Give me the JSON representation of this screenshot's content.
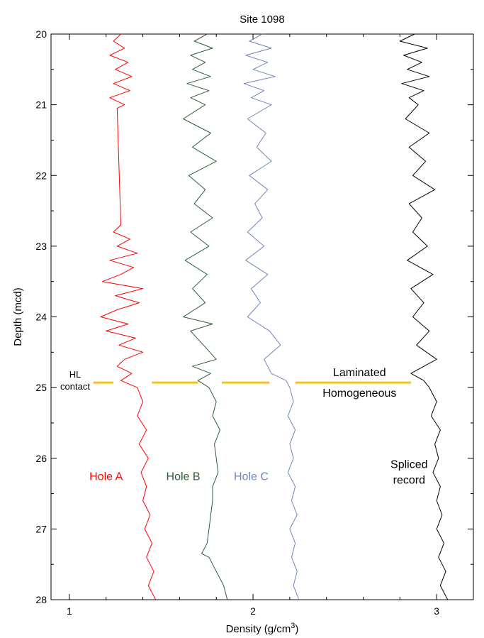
{
  "chart_data": {
    "type": "line",
    "title": "Site 1098",
    "xlabel": "Density (g/cm",
    "xlabel_sup": "3",
    "xlabel_close": ")",
    "ylabel": "Depth (mcd)",
    "xlim": [
      0.9,
      3.2
    ],
    "ylim": [
      20,
      28
    ],
    "y_inverted": true,
    "x_ticks": [
      1,
      2,
      3
    ],
    "y_ticks": [
      20,
      21,
      22,
      23,
      24,
      25,
      26,
      27,
      28
    ],
    "grid": false,
    "series": [
      {
        "name": "Hole A",
        "color": "#ff0000",
        "depth": [
          20.0,
          20.1,
          20.2,
          20.3,
          20.4,
          20.5,
          20.6,
          20.7,
          20.8,
          20.9,
          21.0,
          21.05,
          22.7,
          22.8,
          22.9,
          23.0,
          23.1,
          23.2,
          23.3,
          23.4,
          23.5,
          23.6,
          23.7,
          23.8,
          23.9,
          24.0,
          24.1,
          24.2,
          24.3,
          24.4,
          24.5,
          24.6,
          24.7,
          24.8,
          24.9,
          25.0,
          25.2,
          25.4,
          25.6,
          25.8,
          26.0,
          26.2,
          26.4,
          26.6,
          26.8,
          27.0,
          27.2,
          27.4,
          27.6,
          27.8,
          28.0
        ],
        "density": [
          1.28,
          1.24,
          1.3,
          1.22,
          1.32,
          1.25,
          1.34,
          1.24,
          1.33,
          1.22,
          1.3,
          1.26,
          1.28,
          1.24,
          1.33,
          1.26,
          1.37,
          1.22,
          1.35,
          1.28,
          1.18,
          1.4,
          1.25,
          1.38,
          1.26,
          1.17,
          1.32,
          1.2,
          1.36,
          1.27,
          1.4,
          1.3,
          1.26,
          1.34,
          1.28,
          1.37,
          1.4,
          1.37,
          1.42,
          1.38,
          1.43,
          1.39,
          1.42,
          1.4,
          1.44,
          1.41,
          1.45,
          1.42,
          1.46,
          1.43,
          1.47
        ]
      },
      {
        "name": "Hole B",
        "color": "#2d5e37",
        "depth": [
          20.0,
          20.1,
          20.2,
          20.3,
          20.4,
          20.5,
          20.6,
          20.7,
          20.8,
          20.9,
          21.0,
          21.2,
          21.4,
          21.6,
          21.8,
          22.0,
          22.2,
          22.4,
          22.6,
          22.8,
          23.0,
          23.2,
          23.4,
          23.6,
          23.8,
          24.0,
          24.1,
          24.2,
          24.4,
          24.6,
          24.7,
          24.8,
          24.9,
          25.0,
          25.2,
          25.4,
          25.6,
          25.8,
          26.0,
          26.2,
          26.4,
          26.6,
          26.8,
          27.0,
          27.2,
          27.35,
          27.4,
          27.6,
          27.8,
          28.0
        ],
        "density": [
          1.75,
          1.68,
          1.78,
          1.66,
          1.74,
          1.67,
          1.77,
          1.64,
          1.76,
          1.66,
          1.74,
          1.62,
          1.77,
          1.67,
          1.8,
          1.65,
          1.74,
          1.68,
          1.78,
          1.66,
          1.76,
          1.63,
          1.75,
          1.67,
          1.74,
          1.62,
          1.78,
          1.66,
          1.73,
          1.8,
          1.67,
          1.77,
          1.7,
          1.76,
          1.8,
          1.78,
          1.82,
          1.79,
          1.8,
          1.81,
          1.78,
          1.78,
          1.77,
          1.76,
          1.75,
          1.72,
          1.76,
          1.8,
          1.84,
          1.86
        ]
      },
      {
        "name": "Hole C",
        "color": "#6f86b8",
        "depth": [
          20.0,
          20.1,
          20.2,
          20.3,
          20.4,
          20.5,
          20.6,
          20.7,
          20.8,
          20.9,
          21.0,
          21.2,
          21.4,
          21.6,
          21.8,
          22.0,
          22.2,
          22.4,
          22.6,
          22.8,
          23.0,
          23.2,
          23.4,
          23.6,
          23.8,
          24.0,
          24.2,
          24.4,
          24.6,
          24.8,
          24.9,
          25.0,
          25.2,
          25.4,
          25.6,
          25.8,
          26.0,
          26.2,
          26.4,
          26.6,
          26.8,
          27.0,
          27.2,
          27.4,
          27.6,
          27.8,
          28.0
        ],
        "density": [
          2.05,
          1.98,
          2.1,
          1.96,
          2.08,
          2.0,
          2.12,
          1.95,
          2.06,
          1.99,
          2.1,
          1.97,
          2.07,
          2.02,
          2.1,
          1.98,
          2.08,
          2.01,
          2.05,
          1.97,
          2.06,
          1.96,
          2.08,
          1.99,
          2.04,
          1.97,
          2.09,
          2.15,
          2.06,
          2.1,
          2.18,
          2.2,
          2.22,
          2.19,
          2.23,
          2.2,
          2.22,
          2.19,
          2.23,
          2.21,
          2.24,
          2.2,
          2.23,
          2.21,
          2.24,
          2.22,
          2.25
        ]
      },
      {
        "name": "Spliced record",
        "color": "#000000",
        "depth": [
          20.0,
          20.1,
          20.2,
          20.3,
          20.4,
          20.5,
          20.6,
          20.7,
          20.8,
          20.9,
          21.0,
          21.2,
          21.4,
          21.6,
          21.8,
          22.0,
          22.2,
          22.4,
          22.6,
          22.8,
          23.0,
          23.2,
          23.4,
          23.6,
          23.8,
          24.0,
          24.2,
          24.4,
          24.6,
          24.8,
          24.9,
          25.0,
          25.2,
          25.4,
          25.6,
          25.8,
          26.0,
          26.2,
          26.4,
          26.6,
          26.8,
          27.0,
          27.2,
          27.4,
          27.6,
          27.8,
          28.0
        ],
        "density": [
          2.88,
          2.8,
          2.95,
          2.82,
          2.92,
          2.84,
          2.96,
          2.81,
          2.93,
          2.85,
          2.9,
          2.83,
          2.96,
          2.85,
          2.94,
          2.87,
          2.99,
          2.85,
          2.92,
          2.87,
          2.95,
          2.84,
          2.98,
          2.86,
          2.93,
          2.87,
          2.96,
          2.89,
          3.0,
          2.86,
          2.93,
          2.96,
          3.0,
          2.97,
          3.02,
          2.99,
          3.01,
          2.98,
          3.02,
          3.0,
          3.03,
          3.0,
          3.04,
          3.01,
          3.05,
          3.02,
          3.06
        ]
      }
    ],
    "contact": {
      "depth": 24.93,
      "color": "#f5c02a",
      "label_line1": "HL",
      "label_line2": "contact",
      "above_label": "Laminated",
      "below_label": "Homogeneous",
      "dash_segments": [
        [
          1.13,
          1.24
        ],
        [
          1.45,
          1.7
        ],
        [
          1.83,
          2.09
        ],
        [
          2.23,
          2.86
        ]
      ]
    },
    "annotations": [
      {
        "text": "Hole A",
        "color": "#ff0000",
        "x": 1.2,
        "y": 26.25
      },
      {
        "text": "Hole B",
        "color": "#2d5e37",
        "x": 1.62,
        "y": 26.25
      },
      {
        "text": "Hole C",
        "color": "#6f86b8",
        "x": 1.99,
        "y": 26.25
      },
      {
        "text": "Spliced",
        "color": "#000000",
        "x": 2.85,
        "y": 26.08
      },
      {
        "text": "record",
        "color": "#000000",
        "x": 2.85,
        "y": 26.3
      }
    ]
  }
}
